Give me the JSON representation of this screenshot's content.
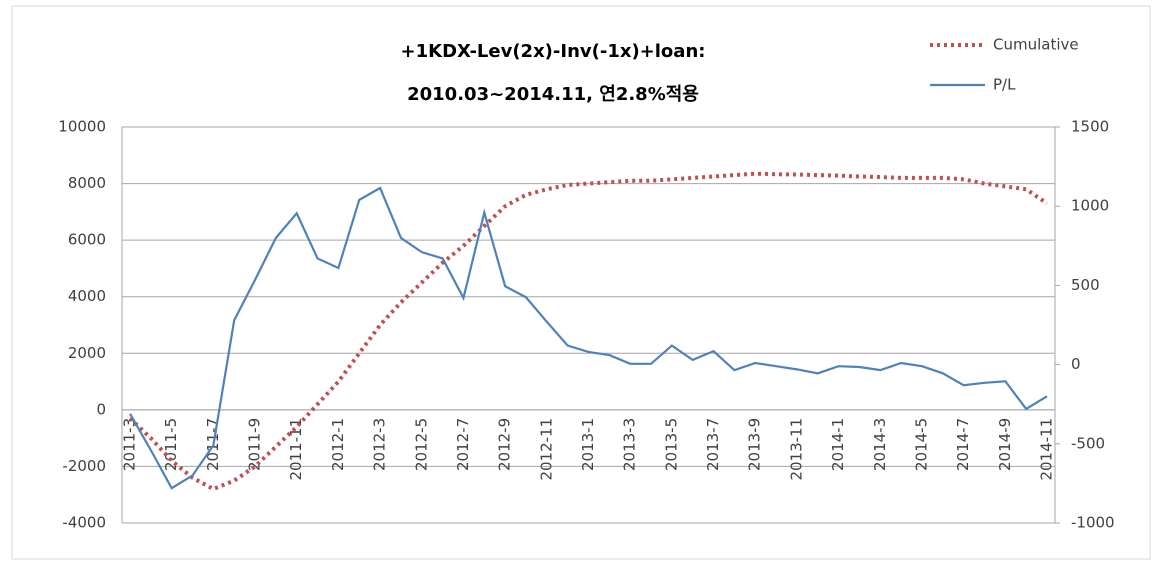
{
  "chart_data": {
    "type": "line",
    "title": [
      "+1KDX-Lev(2x)-Inv(-1x)+loan:",
      "2010.03~2014.11, 연2.8%적용"
    ],
    "categories": [
      "2011-3",
      null,
      "2011-5",
      null,
      "2011-7",
      null,
      "2011-9",
      null,
      "2011-11",
      null,
      "2012-1",
      null,
      "2012-3",
      null,
      "2012-5",
      null,
      "2012-7",
      null,
      "2012-9",
      null,
      "2012-11",
      null,
      "2013-1",
      null,
      "2013-3",
      null,
      "2013-5",
      null,
      "2013-7",
      null,
      "2013-9",
      null,
      "2013-11",
      null,
      "2014-1",
      null,
      "2014-3",
      null,
      "2014-5",
      null,
      "2014-7",
      null,
      "2014-9",
      null,
      "2014-11"
    ],
    "series": [
      {
        "name": "Cumulative",
        "color": "#c0504d",
        "dashed": true,
        "values": [
          -300,
          -1000,
          -1800,
          -2400,
          -2800,
          -2500,
          -2000,
          -1300,
          -600,
          200,
          1000,
          2000,
          3000,
          3800,
          4500,
          5200,
          5800,
          6500,
          7200,
          7600,
          7800,
          7950,
          8000,
          8050,
          8100,
          8100,
          8150,
          8200,
          8250,
          8300,
          8350,
          8330,
          8320,
          8300,
          8280,
          8250,
          8230,
          8200,
          8200,
          8200,
          8150,
          8000,
          7900,
          7800,
          7300
        ]
      },
      {
        "name": "P/L",
        "color": "#4f81bd",
        "axis": "y2",
        "values": [
          -310,
          -540,
          -780,
          -700,
          -510,
          280,
          535,
          800,
          955,
          670,
          610,
          1040,
          1115,
          800,
          710,
          670,
          420,
          960,
          495,
          425,
          270,
          120,
          80,
          60,
          5,
          5,
          120,
          30,
          85,
          -35,
          10,
          -10,
          -30,
          -55,
          -10,
          -15,
          -35,
          10,
          -10,
          -55,
          -130,
          -115,
          -105,
          -280,
          -200
        ]
      }
    ],
    "ylim": [
      -4000,
      10000
    ],
    "yticks": [
      -4000,
      -2000,
      0,
      2000,
      4000,
      6000,
      8000,
      10000
    ],
    "y2lim": [
      -1000,
      1500
    ],
    "y2ticks": [
      -1000,
      -500,
      0,
      500,
      1000,
      1500
    ],
    "grid": true,
    "legend": "top-right"
  }
}
